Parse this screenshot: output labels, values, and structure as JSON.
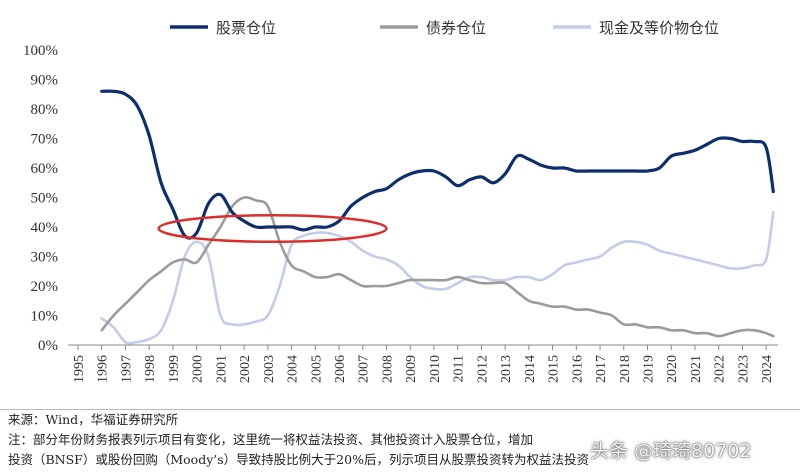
{
  "chart_data": {
    "type": "line",
    "legend_position": "top",
    "x": [
      1996,
      1996.5,
      1997,
      1997.5,
      1998,
      1998.5,
      1999,
      1999.5,
      2000,
      2000.5,
      2001,
      2001.5,
      2002,
      2002.5,
      2003,
      2003.5,
      2004,
      2004.5,
      2005,
      2005.5,
      2006,
      2006.5,
      2007,
      2007.5,
      2008,
      2008.5,
      2009,
      2009.5,
      2010,
      2010.5,
      2011,
      2011.5,
      2012,
      2012.5,
      2013,
      2013.5,
      2014,
      2014.5,
      2015,
      2015.5,
      2016,
      2016.5,
      2017,
      2017.5,
      2018,
      2018.5,
      2019,
      2019.5,
      2020,
      2020.5,
      2021,
      2021.5,
      2022,
      2022.5,
      2023,
      2023.5,
      2024,
      2024.3
    ],
    "series": [
      {
        "name": "股票仓位",
        "color": "#0b2f6e",
        "values": [
          86,
          86,
          85,
          81,
          71,
          55,
          46,
          37,
          38,
          48,
          51,
          45,
          42,
          40,
          40,
          40,
          40,
          39,
          40,
          40,
          42,
          47,
          50,
          52,
          53,
          56,
          58,
          59,
          59,
          57,
          54,
          56,
          57,
          55,
          58,
          64,
          63,
          61,
          60,
          60,
          59,
          59,
          59,
          59,
          59,
          59,
          59,
          60,
          64,
          65,
          66,
          68,
          70,
          70,
          69,
          69,
          67,
          52
        ]
      },
      {
        "name": "债券仓位",
        "color": "#9b9b9b",
        "values": [
          5,
          10,
          14,
          18,
          22,
          25,
          28,
          29,
          28,
          34,
          40,
          47,
          50,
          49,
          47,
          35,
          27,
          25,
          23,
          23,
          24,
          22,
          20,
          20,
          20,
          21,
          22,
          22,
          22,
          22,
          23,
          22,
          21,
          21,
          21,
          18,
          15,
          14,
          13,
          13,
          12,
          12,
          11,
          10,
          7,
          7,
          6,
          6,
          5,
          5,
          4,
          4,
          3,
          4,
          5,
          5,
          4,
          3
        ]
      },
      {
        "name": "现金及等价物仓位",
        "color": "#c3cce8",
        "values": [
          9,
          6,
          1,
          1,
          2,
          5,
          15,
          30,
          35,
          30,
          10,
          7,
          7,
          8,
          10,
          20,
          34,
          37,
          38,
          38,
          37,
          35,
          32,
          30,
          29,
          27,
          23,
          20,
          19,
          19,
          21,
          23,
          23,
          22,
          22,
          23,
          23,
          22,
          24,
          27,
          28,
          29,
          30,
          33,
          35,
          35,
          34,
          32,
          31,
          30,
          29,
          28,
          27,
          26,
          26,
          27,
          29,
          45
        ]
      }
    ],
    "x_tick_labels": [
      "1995",
      "1996",
      "1997",
      "1998",
      "1999",
      "2000",
      "2001",
      "2002",
      "2003",
      "2004",
      "2005",
      "2006",
      "2007",
      "2008",
      "2009",
      "2010",
      "2011",
      "2012",
      "2013",
      "2014",
      "2015",
      "2016",
      "2017",
      "2018",
      "2019",
      "2020",
      "2021",
      "2022",
      "2023",
      "2024"
    ],
    "y_tick_labels": [
      "0%",
      "10%",
      "20%",
      "30%",
      "40%",
      "50%",
      "60%",
      "70%",
      "80%",
      "90%",
      "100%"
    ],
    "xlim": [
      1995,
      2024.5
    ],
    "ylim": [
      0,
      100
    ],
    "grid": false,
    "annotation": {
      "type": "ellipse",
      "color": "#d9302c",
      "x_range": [
        1998.4,
        2008
      ],
      "y_center": 39.5,
      "y_halfheight": 4.5
    }
  },
  "notes": {
    "source": "来源：Wind，华福证券研究所",
    "note_line1": "注：部分年份财务报表列示项目有变化，这里统一将权益法投资、其他投资计入股票仓位，增加",
    "note_line2": "投资（BNSF）或股份回购（Moody’s）导致持股比例大于20%后，列示项目从股票投资转为权益法投资"
  },
  "watermark": "头条 @琦琦80702"
}
